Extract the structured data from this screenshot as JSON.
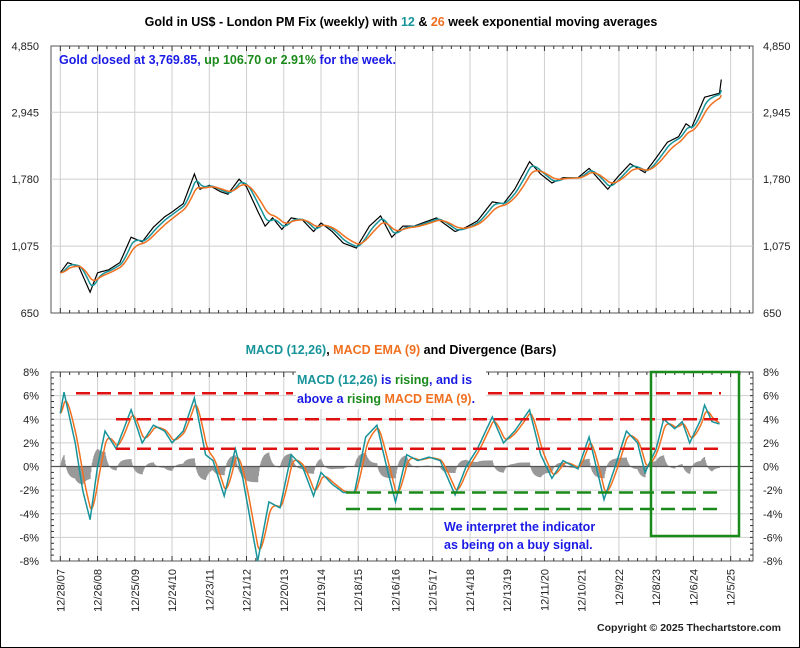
{
  "chart_data": [
    {
      "type": "line",
      "title_parts": [
        {
          "text": "Gold in US$ - London PM Fix (weekly) with ",
          "color": "#000000"
        },
        {
          "text": "12",
          "color": "#17949a"
        },
        {
          "text": " & ",
          "color": "#000000"
        },
        {
          "text": "26",
          "color": "#f07020"
        },
        {
          "text": " week exponential moving averages",
          "color": "#000000"
        }
      ],
      "annotation_parts": [
        {
          "text": "Gold closed at 3,769.85, ",
          "color": "#1a1ae6"
        },
        {
          "text": "up 106.70 or 2.91%",
          "color": "#1a8a1a"
        },
        {
          "text": " for the week.",
          "color": "#1a1ae6"
        }
      ],
      "yscale": "log",
      "ylim": [
        650,
        4850
      ],
      "yticks": [
        "4,850",
        "2,945",
        "1,780",
        "1,075",
        "650"
      ],
      "ytick_values": [
        4850,
        2945,
        1780,
        1075,
        650
      ],
      "xlim": [
        2007.75,
        2026.6
      ],
      "series": [
        {
          "name": "Gold weekly",
          "color": "#000000",
          "x": [
            2008.0,
            2008.2,
            2008.5,
            2008.8,
            2009.0,
            2009.3,
            2009.6,
            2009.9,
            2010.2,
            2010.5,
            2010.8,
            2011.0,
            2011.3,
            2011.6,
            2011.75,
            2012.0,
            2012.3,
            2012.5,
            2012.8,
            2013.0,
            2013.3,
            2013.5,
            2013.7,
            2013.95,
            2014.2,
            2014.5,
            2014.8,
            2015.0,
            2015.3,
            2015.6,
            2015.95,
            2016.3,
            2016.6,
            2016.9,
            2017.2,
            2017.5,
            2017.8,
            2018.1,
            2018.6,
            2018.9,
            2019.2,
            2019.6,
            2019.9,
            2020.2,
            2020.6,
            2020.9,
            2021.2,
            2021.5,
            2021.9,
            2022.2,
            2022.7,
            2022.95,
            2023.3,
            2023.7,
            2023.95,
            2024.3,
            2024.6,
            2024.8,
            2024.95,
            2025.3,
            2025.5,
            2025.7,
            2025.75
          ],
          "y": [
            880,
            950,
            920,
            760,
            880,
            900,
            950,
            1150,
            1110,
            1240,
            1340,
            1390,
            1480,
            1850,
            1650,
            1700,
            1620,
            1590,
            1780,
            1680,
            1400,
            1250,
            1330,
            1220,
            1330,
            1310,
            1200,
            1280,
            1200,
            1100,
            1060,
            1250,
            1350,
            1150,
            1250,
            1250,
            1290,
            1330,
            1200,
            1240,
            1300,
            1500,
            1480,
            1650,
            2030,
            1850,
            1730,
            1800,
            1800,
            1930,
            1650,
            1800,
            2000,
            1870,
            2050,
            2350,
            2450,
            2700,
            2620,
            3300,
            3350,
            3400,
            3770
          ]
        },
        {
          "name": "12 week EMA",
          "color": "#17949a",
          "derived_from": "Gold weekly"
        },
        {
          "name": "26 week EMA",
          "color": "#f07020",
          "derived_from": "Gold weekly"
        }
      ]
    },
    {
      "type": "line",
      "title_parts": [
        {
          "text": "MACD (12,26)",
          "color": "#17949a"
        },
        {
          "text": ", ",
          "color": "#000000"
        },
        {
          "text": "MACD EMA (9)",
          "color": "#f07020"
        },
        {
          "text": " and Divergence (Bars)",
          "color": "#000000"
        }
      ],
      "annotation1_line1": [
        {
          "text": "MACD (12,26)",
          "color": "#17949a"
        },
        {
          "text": " is ",
          "color": "#1a1ae6"
        },
        {
          "text": "rising",
          "color": "#1a8a1a"
        },
        {
          "text": ", and is",
          "color": "#1a1ae6"
        }
      ],
      "annotation1_line2": [
        {
          "text": "above a ",
          "color": "#1a1ae6"
        },
        {
          "text": "rising ",
          "color": "#1a8a1a"
        },
        {
          "text": "MACD EMA (9)",
          "color": "#f07020"
        },
        {
          "text": ".",
          "color": "#1a1ae6"
        }
      ],
      "annotation2": [
        "We interpret the indicator",
        "as being on a buy signal."
      ],
      "ylim": [
        -8,
        8
      ],
      "yticks": [
        "8%",
        "6%",
        "4%",
        "2%",
        "0%",
        "-2%",
        "-4%",
        "-6%",
        "-8%"
      ],
      "ytick_values": [
        8,
        6,
        4,
        2,
        0,
        -2,
        -4,
        -6,
        -8
      ],
      "red_levels": [
        6.2,
        4.0,
        1.5
      ],
      "green_levels": [
        -2.2,
        -3.6
      ],
      "series": [
        {
          "name": "MACD (12,26)",
          "color": "#17949a",
          "x": [
            2008.0,
            2008.1,
            2008.4,
            2008.6,
            2008.8,
            2009.0,
            2009.2,
            2009.5,
            2009.9,
            2010.2,
            2010.5,
            2010.8,
            2011.0,
            2011.3,
            2011.6,
            2011.9,
            2012.1,
            2012.4,
            2012.7,
            2012.9,
            2013.3,
            2013.6,
            2013.9,
            2014.2,
            2014.5,
            2014.8,
            2015.0,
            2015.3,
            2015.6,
            2015.9,
            2016.2,
            2016.5,
            2016.8,
            2017.0,
            2017.3,
            2017.6,
            2017.9,
            2018.2,
            2018.6,
            2018.9,
            2019.2,
            2019.6,
            2019.9,
            2020.2,
            2020.6,
            2020.9,
            2021.2,
            2021.5,
            2021.9,
            2022.2,
            2022.6,
            2022.9,
            2023.2,
            2023.5,
            2023.7,
            2024.0,
            2024.2,
            2024.5,
            2024.7,
            2024.9,
            2025.2,
            2025.3,
            2025.5,
            2025.7
          ],
          "y": [
            4.5,
            6.3,
            2,
            -2,
            -4.5,
            0,
            3,
            1.5,
            4.8,
            2,
            3.5,
            3,
            2,
            3,
            5.8,
            1,
            0.5,
            -2.5,
            1.5,
            -1,
            -8,
            -3,
            -3.5,
            1,
            0,
            -2.5,
            -0.5,
            -1.5,
            -2.2,
            -2.2,
            2.5,
            3.5,
            -0.5,
            -3,
            1,
            0.5,
            0.8,
            0.5,
            -2.4,
            0,
            1.5,
            4.2,
            2,
            3,
            4.8,
            1,
            -1,
            0.5,
            -0.2,
            2.5,
            -2.8,
            0,
            3,
            2,
            -0.5,
            1.5,
            4,
            3.2,
            3.8,
            2.0,
            4.0,
            5.2,
            3.8,
            3.6
          ]
        },
        {
          "name": "MACD EMA (9)",
          "color": "#f07020",
          "derived_from": "MACD (12,26)"
        },
        {
          "name": "Divergence",
          "color": "#999999",
          "type": "bar",
          "derived_from": "MACD - MACD EMA"
        }
      ]
    }
  ],
  "x_labels": [
    "12/28/07",
    "12/26/08",
    "12/25/09",
    "12/24/10",
    "12/23/11",
    "12/21/12",
    "12/20/13",
    "12/19/14",
    "12/18/15",
    "12/16/16",
    "12/15/17",
    "12/14/18",
    "12/13/19",
    "12/11/20",
    "12/10/21",
    "12/9/22",
    "12/8/23",
    "12/6/24",
    "12/5/25"
  ],
  "copyright": "Copyright © 2025 Thechartstore.com"
}
